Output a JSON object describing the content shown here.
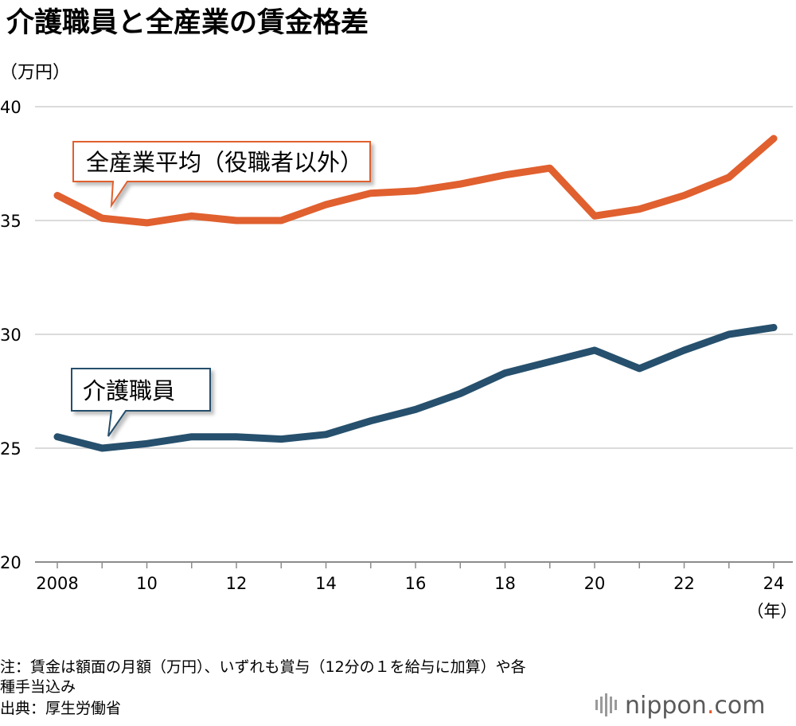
{
  "chart_data": {
    "type": "line",
    "title": "介護職員と全産業の賃金格差",
    "ylabel": "（万円）",
    "xlabel": "（年）",
    "ylim": [
      20,
      40
    ],
    "yticks": [
      20,
      25,
      30,
      35,
      40
    ],
    "x": [
      2008,
      2009,
      2010,
      2011,
      2012,
      2013,
      2014,
      2015,
      2016,
      2017,
      2018,
      2019,
      2020,
      2021,
      2022,
      2023,
      2024
    ],
    "xtick_values": [
      2008,
      2010,
      2012,
      2014,
      2016,
      2018,
      2020,
      2022,
      2024
    ],
    "xtick_labels": [
      "2008",
      "10",
      "12",
      "14",
      "16",
      "18",
      "20",
      "22",
      "24"
    ],
    "grid": true,
    "series": [
      {
        "name": "全産業平均（役職者以外）",
        "color": "#e0602f",
        "values": [
          36.1,
          35.1,
          34.9,
          35.2,
          35.0,
          35.0,
          35.7,
          36.2,
          36.3,
          36.6,
          37.0,
          37.3,
          35.2,
          35.5,
          36.1,
          36.9,
          38.6
        ]
      },
      {
        "name": "介護職員",
        "color": "#26506d",
        "values": [
          25.5,
          25.0,
          25.2,
          25.5,
          25.5,
          25.4,
          25.6,
          26.2,
          26.7,
          27.4,
          28.3,
          28.8,
          29.3,
          28.5,
          29.3,
          30.0,
          30.3
        ]
      }
    ]
  },
  "notes": {
    "line1": "注：賃金は額面の月額（万円）、いずれも賞与（12分の１を給与に加算）や各",
    "line2": "種手当込み",
    "source": "出典：厚生労働省"
  },
  "logo": {
    "text_a": "nippon",
    "text_dot": ".",
    "text_b": "com"
  }
}
